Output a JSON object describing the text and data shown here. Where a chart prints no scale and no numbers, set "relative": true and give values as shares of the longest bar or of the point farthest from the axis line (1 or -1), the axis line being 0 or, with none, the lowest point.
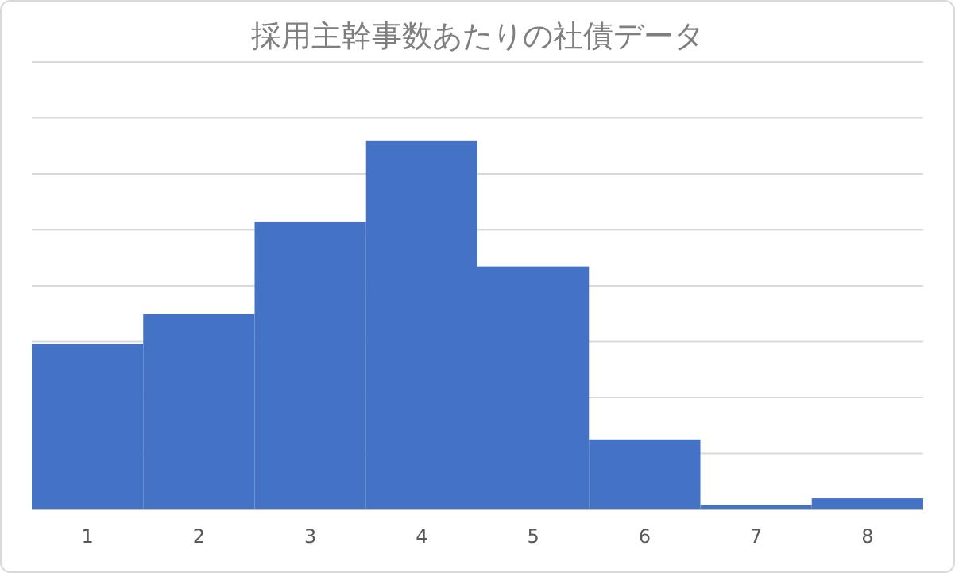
{
  "chart_data": {
    "type": "bar",
    "title": "採用主幹事数あたりの社債データ",
    "categories": [
      "1",
      "2",
      "3",
      "4",
      "5",
      "6",
      "7",
      "8"
    ],
    "relative": true,
    "color": "#4472c4",
    "grid": "y",
    "values": [
      0.45,
      0.53,
      0.78,
      1,
      0.66,
      0.19,
      0.013,
      0.03
    ]
  }
}
